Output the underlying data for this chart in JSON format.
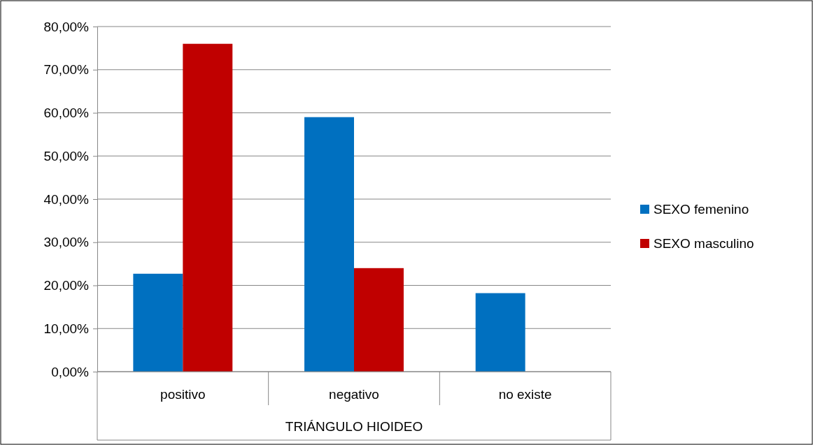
{
  "chart_data": {
    "type": "bar",
    "xlabel": "TRIÁNGULO HIOIDEO",
    "categories": [
      "positivo",
      "negativo",
      "no existe"
    ],
    "series": [
      {
        "name": "SEXO femenino",
        "color": "#0070c0",
        "values": [
          22.7,
          59.0,
          18.2
        ]
      },
      {
        "name": "SEXO masculino",
        "color": "#c00000",
        "values": [
          76.0,
          24.0,
          0
        ]
      }
    ],
    "ylim": [
      0,
      80
    ],
    "yticks": [
      {
        "value": 0,
        "label": "0,00%"
      },
      {
        "value": 10,
        "label": "10,00%"
      },
      {
        "value": 20,
        "label": "20,00%"
      },
      {
        "value": 30,
        "label": "30,00%"
      },
      {
        "value": 40,
        "label": "40,00%"
      },
      {
        "value": 50,
        "label": "50,00%"
      },
      {
        "value": 60,
        "label": "60,00%"
      },
      {
        "value": 70,
        "label": "70,00%"
      },
      {
        "value": 80,
        "label": "80,00%"
      }
    ],
    "grid": "y",
    "legend": "right"
  }
}
